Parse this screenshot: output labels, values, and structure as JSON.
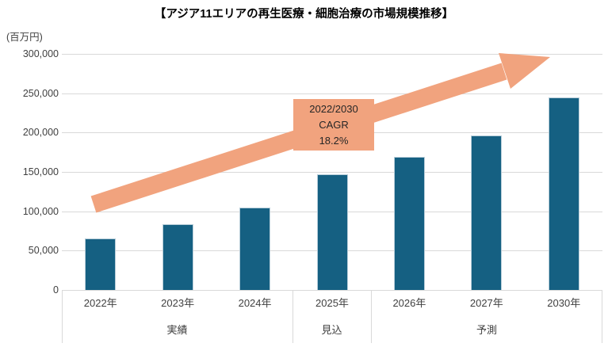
{
  "title": "【アジア11エリアの再生医療・細胞治療の市場規模推移】",
  "y_axis": {
    "unit": "(百万円)",
    "ticks": [
      "300,000",
      "250,000",
      "200,000",
      "150,000",
      "100,000",
      "50,000",
      "0"
    ]
  },
  "chart_data": {
    "type": "bar",
    "title": "アジア11エリアの再生医療・細胞治療の市場規模推移",
    "categories": [
      "2022年",
      "2023年",
      "2024年",
      "2025年",
      "2026年",
      "2027年",
      "2030年"
    ],
    "values": [
      64000,
      83000,
      104000,
      146000,
      168000,
      195000,
      244000
    ],
    "ylabel": "(百万円)",
    "ylim": [
      0,
      300000
    ],
    "ytick_interval": 50000,
    "grid": true,
    "legend": "none",
    "bar_color": "#156082",
    "group_labels": [
      {
        "label": "実績",
        "categories": [
          "2022年",
          "2023年",
          "2024年"
        ]
      },
      {
        "label": "見込",
        "categories": [
          "2025年"
        ]
      },
      {
        "label": "予測",
        "categories": [
          "2026年",
          "2027年",
          "2030年"
        ]
      }
    ]
  },
  "annotation": {
    "lines": [
      "2022/2030",
      "CAGR",
      "18.2%"
    ],
    "bg_color": "#F1A37E",
    "text_color": "#262626"
  },
  "arrow": {
    "color": "#F1A37E",
    "direction": "up-right"
  },
  "colors": {
    "gridline": "#d9d9d9",
    "axis_text": "#404040"
  }
}
